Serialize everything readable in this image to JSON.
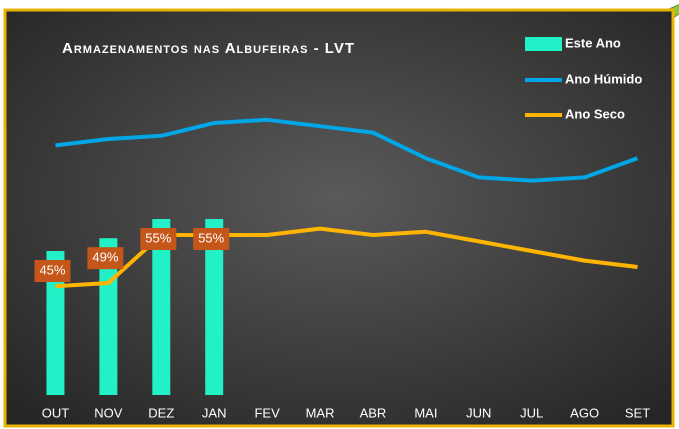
{
  "chart_data": {
    "type": "bar-line",
    "title": "Armazenamentos nas Albufeiras - LVT",
    "categories": [
      "OUT",
      "NOV",
      "DEZ",
      "JAN",
      "FEV",
      "MAR",
      "ABR",
      "MAI",
      "JUN",
      "JUL",
      "AGO",
      "SET"
    ],
    "series": [
      {
        "name": "Este Ano",
        "type": "bar",
        "color": "#22f0c6",
        "values": [
          45,
          49,
          55,
          55,
          null,
          null,
          null,
          null,
          null,
          null,
          null,
          null
        ],
        "value_labels": [
          "45%",
          "49%",
          "55%",
          "55%",
          null,
          null,
          null,
          null,
          null,
          null,
          null,
          null
        ]
      },
      {
        "name": "Ano Húmido",
        "type": "line",
        "color": "#00a6e6",
        "values": [
          78,
          80,
          81,
          85,
          86,
          84,
          82,
          74,
          68,
          67,
          68,
          74
        ]
      },
      {
        "name": "Ano Seco",
        "type": "line",
        "color": "#ffb400",
        "values": [
          34,
          35,
          50,
          50,
          50,
          52,
          50,
          51,
          48,
          45,
          42,
          40
        ]
      }
    ],
    "ylim": [
      0,
      110
    ],
    "label_color": "#c5561a"
  }
}
